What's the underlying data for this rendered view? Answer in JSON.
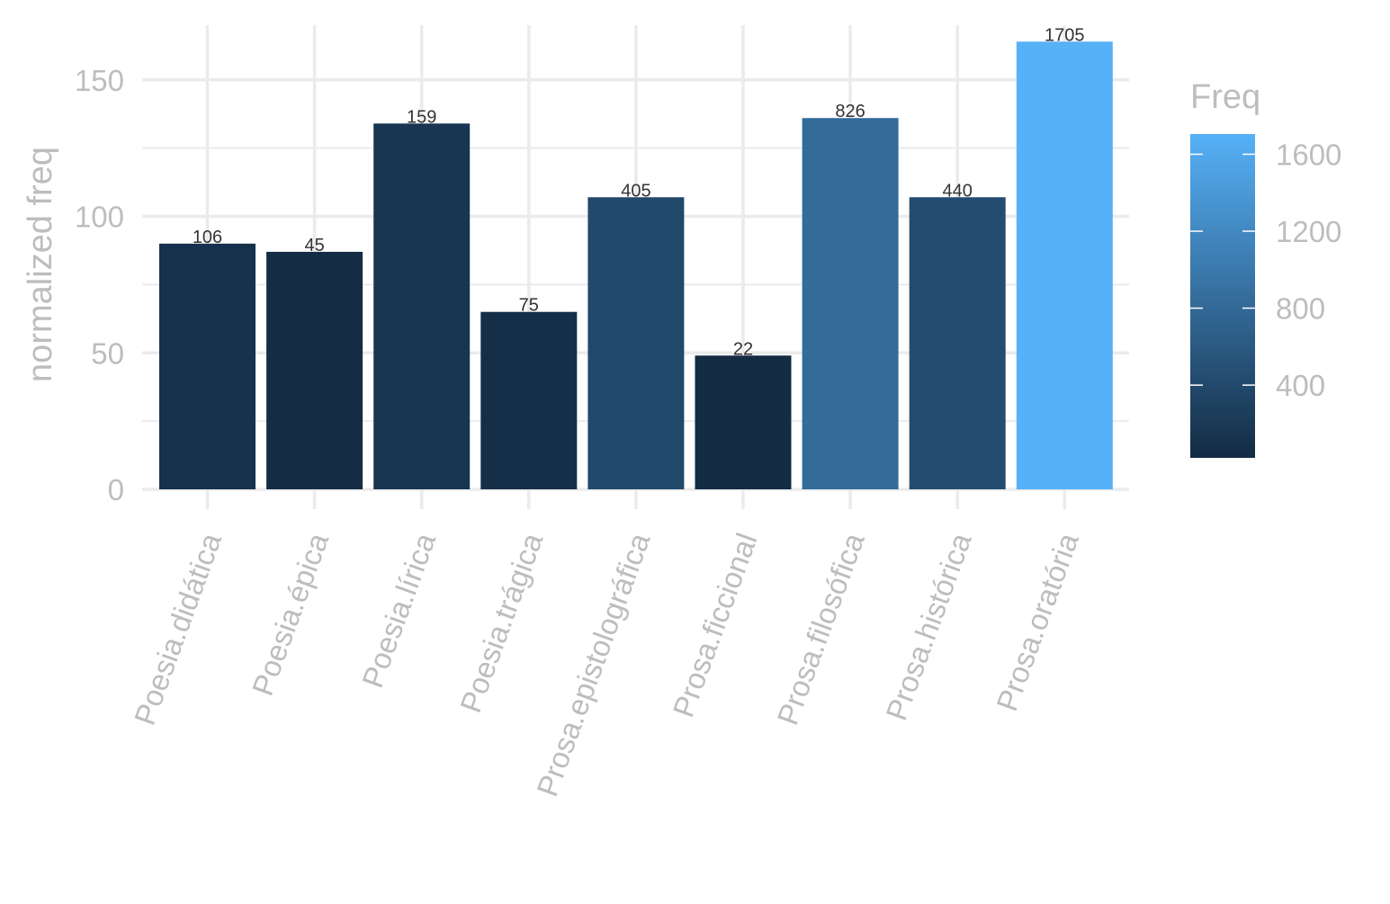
{
  "chart_data": {
    "type": "bar",
    "title": "",
    "xlabel": "",
    "ylabel": "normalized freq",
    "ylim": [
      0,
      170
    ],
    "y_ticks": [
      0,
      50,
      100,
      150
    ],
    "grid": true,
    "categories": [
      "Poesia.didática",
      "Poesia.épica",
      "Poesia.lírica",
      "Poesia.trágica",
      "Prosa.epistolográfica",
      "Prosa.ficcional",
      "Prosa.filosófica",
      "Prosa.histórica",
      "Prosa.oratória"
    ],
    "values": [
      90,
      87,
      134,
      65,
      107,
      49,
      136,
      107,
      164
    ],
    "fill_values": [
      106,
      45,
      159,
      75,
      405,
      22,
      826,
      440,
      1705
    ],
    "data_labels": [
      "106",
      "45",
      "159",
      "75",
      "405",
      "22",
      "826",
      "440",
      "1705"
    ],
    "legend": {
      "title": "Freq",
      "position": "right",
      "type": "colorbar",
      "range": [
        22,
        1705
      ],
      "ticks": [
        400,
        800,
        1200,
        1600
      ],
      "tick_labels": [
        "400",
        "800",
        "1200",
        "1600"
      ],
      "low_color": "#132B43",
      "high_color": "#56B1F7"
    },
    "colors": {
      "grid": "#ebebeb",
      "axis_text": "#bdbdbd",
      "data_label": "#333333"
    }
  }
}
